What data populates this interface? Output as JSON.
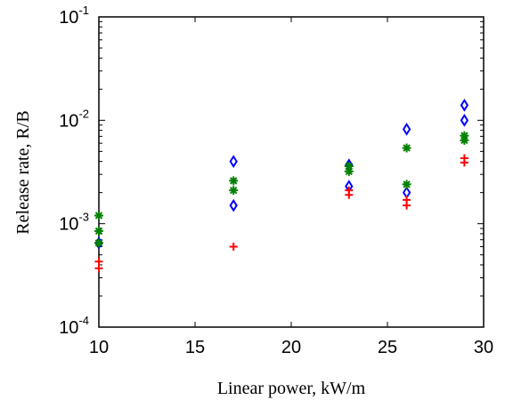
{
  "chart_data": {
    "type": "scatter",
    "title": "",
    "xlabel": "Linear power, kW/m",
    "ylabel": "Release rate, R/B",
    "xlim": [
      10,
      30
    ],
    "ylim": [
      0.0001,
      0.1
    ],
    "yscale": "log",
    "grid": false,
    "legend": "none",
    "x_ticks": [
      "10",
      "15",
      "20",
      "25",
      "30"
    ],
    "y_ticks": [
      {
        "base": "10",
        "exp": "-4",
        "value": 0.0001
      },
      {
        "base": "10",
        "exp": "-3",
        "value": 0.001
      },
      {
        "base": "10",
        "exp": "-2",
        "value": 0.01
      },
      {
        "base": "10",
        "exp": "-1",
        "value": 0.1
      }
    ],
    "series": [
      {
        "marker": "diamond-open",
        "color": "#0000ff",
        "points": [
          [
            10,
            0.00065
          ],
          [
            17,
            0.004
          ],
          [
            17,
            0.0015
          ],
          [
            23,
            0.0037
          ],
          [
            23,
            0.0023
          ],
          [
            26,
            0.0082
          ],
          [
            26,
            0.002
          ],
          [
            29,
            0.014
          ],
          [
            29,
            0.01
          ]
        ]
      },
      {
        "marker": "star",
        "color": "#008000",
        "points": [
          [
            10,
            0.0012
          ],
          [
            10,
            0.00085
          ],
          [
            10,
            0.00065
          ],
          [
            17,
            0.0026
          ],
          [
            17,
            0.0021
          ],
          [
            23,
            0.0036
          ],
          [
            23,
            0.0032
          ],
          [
            26,
            0.0054
          ],
          [
            26,
            0.0024
          ],
          [
            29,
            0.0071
          ],
          [
            29,
            0.0064
          ]
        ]
      },
      {
        "marker": "plus",
        "color": "#ff0000",
        "points": [
          [
            10,
            0.00043
          ],
          [
            10,
            0.00037
          ],
          [
            17,
            0.0006
          ],
          [
            23,
            0.0021
          ],
          [
            23,
            0.0019
          ],
          [
            26,
            0.0017
          ],
          [
            26,
            0.0015
          ],
          [
            29,
            0.0043
          ],
          [
            29,
            0.0039
          ]
        ]
      }
    ]
  }
}
